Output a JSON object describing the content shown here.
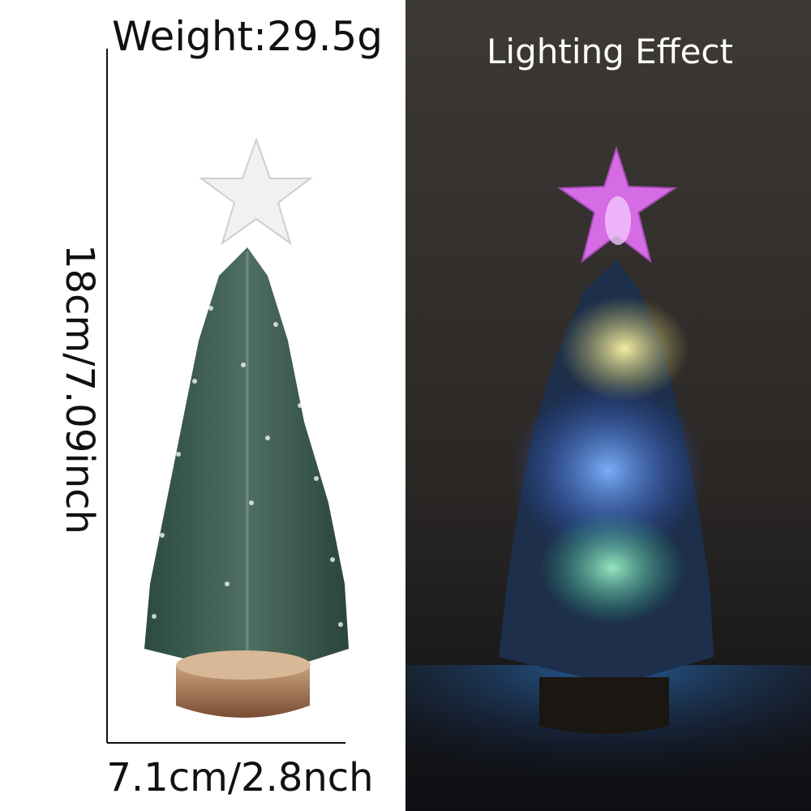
{
  "left_panel": {
    "weight": "Weight:29.5g",
    "height": "18cm/7.09inch",
    "width": "7.1cm/2.8nch"
  },
  "right_panel": {
    "title": "Lighting Effect"
  }
}
